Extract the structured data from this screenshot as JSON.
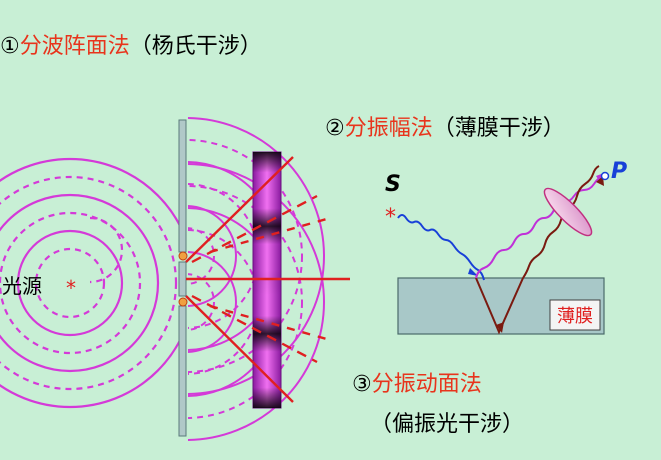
{
  "method1": {
    "num": "①",
    "name": "分波阵面法",
    "paren": "（杨氏干涉）"
  },
  "method2": {
    "num": "②",
    "name": "分振幅法",
    "paren": "（薄膜干涉）"
  },
  "method3": {
    "num": "③",
    "name": "分振动面法",
    "paren": "（偏振光干涉）"
  },
  "labels": {
    "light_source": "光源",
    "source_star": "*",
    "S": "S",
    "P": "P",
    "film": "薄膜"
  },
  "colors": {
    "background": "#c8efd5",
    "title_black": "#000000",
    "title_red": "#e8341c",
    "wave_magenta": "#d43ad8",
    "ray_red": "#e02020",
    "blue_ray": "#1840d8",
    "brown_ray": "#7a1a10",
    "film_fill": "#a8c8c8"
  }
}
